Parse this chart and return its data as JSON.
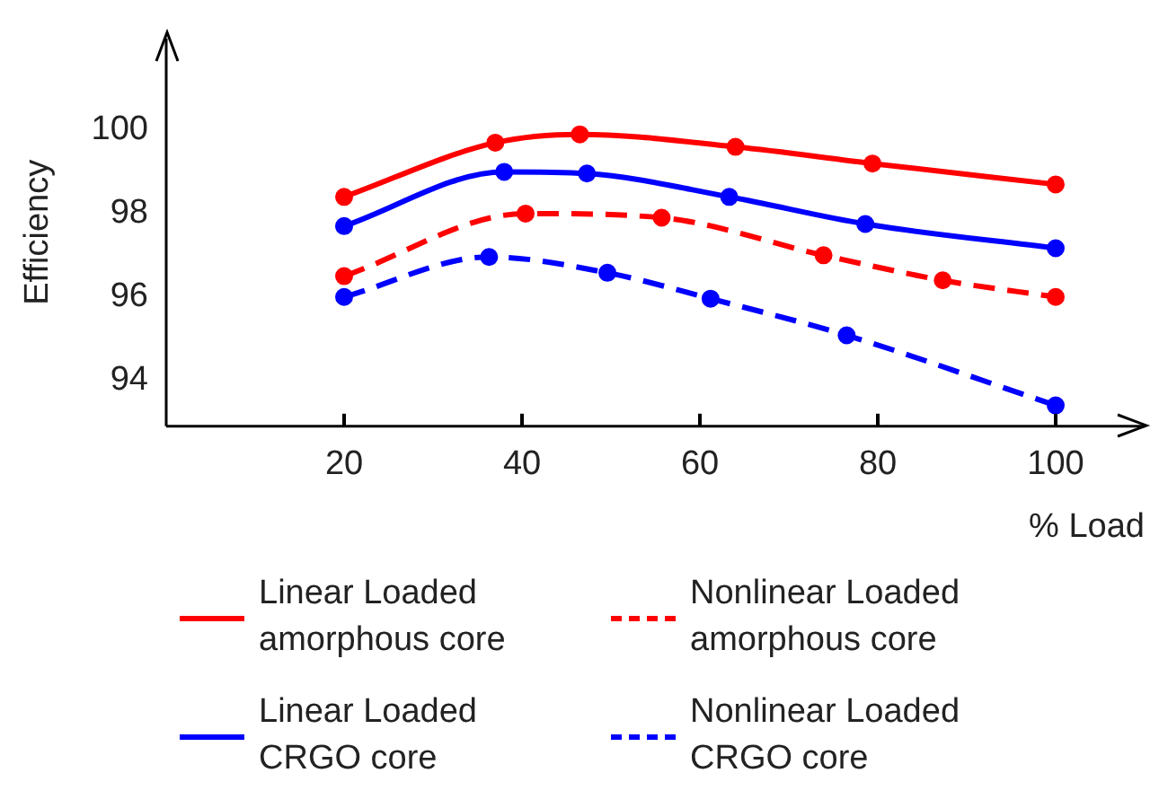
{
  "chart_data": {
    "type": "line",
    "xlabel": "% Load",
    "ylabel": "Efficiency",
    "xlim": [
      0,
      110
    ],
    "ylim": [
      92.9,
      102.2
    ],
    "xticks": [
      20,
      40,
      60,
      80,
      100
    ],
    "yticks": [
      94,
      96,
      98,
      100
    ],
    "grid": false,
    "legend": "bottom",
    "marker": "circle",
    "series": [
      {
        "name": "Linear Loaded amorphous core",
        "color": "#ff0000",
        "line_style": "solid",
        "x": [
          20,
          37,
          46.5,
          64,
          79.4,
          100
        ],
        "values": [
          98.4,
          99.7,
          99.9,
          99.6,
          99.2,
          98.7
        ]
      },
      {
        "name": "Nonlinear Loaded amorphous core",
        "color": "#ff0000",
        "line_style": "dashed",
        "x": [
          20,
          40.4,
          55.7,
          73.9,
          87.3,
          100
        ],
        "values": [
          96.5,
          98.0,
          97.9,
          97.0,
          96.4,
          96.0
        ]
      },
      {
        "name": "Linear Loaded CRGO core",
        "color": "#0000ff",
        "line_style": "solid",
        "x": [
          20,
          38,
          47.3,
          63.3,
          78.6,
          100
        ],
        "values": [
          97.7,
          99.0,
          98.96,
          98.4,
          97.75,
          97.17
        ]
      },
      {
        "name": "Nonlinear Loaded CRGO core",
        "color": "#0000ff",
        "line_style": "dashed",
        "x": [
          20,
          36.3,
          49.6,
          61.2,
          76.5,
          100
        ],
        "values": [
          96.0,
          96.96,
          96.58,
          95.96,
          95.08,
          93.4
        ]
      }
    ]
  }
}
